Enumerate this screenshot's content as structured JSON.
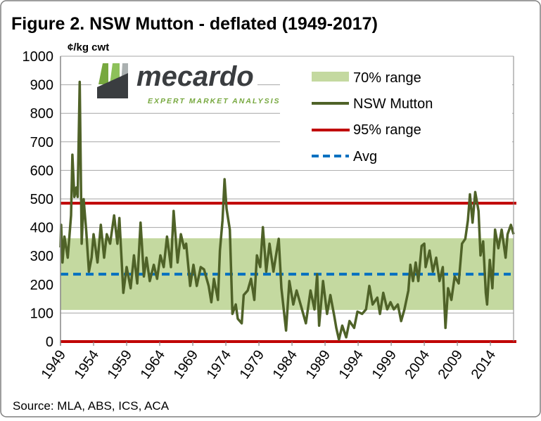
{
  "chart_data": {
    "type": "line",
    "title": "Figure 2. NSW Mutton - deflated (1949-2017)",
    "ylabel": "¢/kg cwt",
    "xlabel": "",
    "source": "Source:  MLA, ABS, ICS, ACA",
    "ylim": [
      0,
      1000
    ],
    "xlim": [
      1949,
      2017.5
    ],
    "yticks": [
      0,
      100,
      200,
      300,
      400,
      500,
      600,
      700,
      800,
      900,
      1000
    ],
    "xticks": [
      1949,
      1954,
      1959,
      1964,
      1969,
      1974,
      1979,
      1984,
      1989,
      1994,
      1999,
      2004,
      2009,
      2014
    ],
    "grid": true,
    "legend_position": "top-right",
    "legend": [
      "70% range",
      "NSW Mutton",
      "95% range",
      "Avg"
    ],
    "colors": {
      "band": "#c4d9a0",
      "series": "#4f6228",
      "range95": "#c00000",
      "avg": "#0070c0",
      "grid": "#a6a6a6"
    },
    "range70": [
      111,
      362
    ],
    "range95": [
      0,
      485
    ],
    "avg": 236,
    "series": [
      {
        "name": "NSW Mutton",
        "x": [
          1949.0,
          1949.1,
          1949.3,
          1949.6,
          1950.1,
          1950.6,
          1950.8,
          1951.1,
          1951.4,
          1951.6,
          1951.9,
          1952.2,
          1952.5,
          1952.9,
          1953.3,
          1953.7,
          1954.0,
          1954.6,
          1955.1,
          1955.6,
          1956.0,
          1956.5,
          1957.1,
          1957.6,
          1957.9,
          1958.5,
          1959.0,
          1959.6,
          1960.1,
          1960.6,
          1961.1,
          1961.6,
          1962.0,
          1962.5,
          1963.1,
          1963.6,
          1964.1,
          1964.6,
          1965.1,
          1965.7,
          1966.1,
          1966.7,
          1967.2,
          1967.7,
          1968.0,
          1968.6,
          1969.1,
          1969.6,
          1970.2,
          1970.7,
          1971.4,
          1971.8,
          1972.2,
          1972.8,
          1973.1,
          1973.5,
          1973.8,
          1974.1,
          1974.6,
          1975.0,
          1975.5,
          1975.8,
          1976.4,
          1976.7,
          1977.3,
          1977.8,
          1978.3,
          1978.7,
          1979.2,
          1979.6,
          1980.1,
          1980.6,
          1981.2,
          1981.7,
          1982.0,
          1982.4,
          1983.1,
          1983.6,
          1984.2,
          1984.7,
          1985.4,
          1986.1,
          1986.8,
          1987.4,
          1987.8,
          1988.1,
          1988.7,
          1989.3,
          1989.8,
          1990.4,
          1990.7,
          1991.1,
          1991.6,
          1992.2,
          1992.7,
          1993.4,
          1993.9,
          1994.6,
          1995.2,
          1995.7,
          1996.2,
          1996.9,
          1997.3,
          1997.8,
          1998.4,
          1998.9,
          1999.4,
          2000.0,
          2000.5,
          2001.0,
          2001.6,
          2001.9,
          2002.3,
          2002.7,
          2003.1,
          2003.6,
          2004.0,
          2004.2,
          2004.8,
          2005.3,
          2005.8,
          2006.3,
          2006.8,
          2007.2,
          2007.6,
          2008.1,
          2008.6,
          2009.2,
          2009.7,
          2010.2,
          2010.6,
          2010.9,
          2011.3,
          2011.7,
          2012.2,
          2012.5,
          2012.9,
          2013.3,
          2013.5,
          2013.9,
          2014.3,
          2014.7,
          2015.2,
          2015.7,
          2016.3,
          2016.6,
          2017.1,
          2017.5
        ],
        "y": [
          330,
          409,
          277,
          368,
          294,
          442,
          655,
          507,
          540,
          507,
          910,
          343,
          499,
          384,
          245,
          294,
          376,
          277,
          409,
          294,
          376,
          343,
          442,
          343,
          433,
          171,
          261,
          187,
          302,
          204,
          417,
          228,
          294,
          212,
          269,
          220,
          302,
          261,
          368,
          261,
          458,
          277,
          376,
          327,
          343,
          195,
          269,
          195,
          261,
          253,
          195,
          138,
          220,
          146,
          319,
          425,
          569,
          466,
          392,
          97,
          130,
          80,
          64,
          163,
          179,
          220,
          146,
          302,
          261,
          401,
          245,
          343,
          245,
          319,
          360,
          187,
          39,
          212,
          130,
          179,
          122,
          64,
          179,
          113,
          236,
          56,
          212,
          97,
          163,
          89,
          48,
          7,
          56,
          15,
          72,
          48,
          105,
          97,
          113,
          195,
          130,
          154,
          97,
          171,
          113,
          138,
          113,
          130,
          72,
          113,
          179,
          269,
          212,
          277,
          212,
          335,
          343,
          261,
          319,
          245,
          294,
          212,
          261,
          48,
          187,
          146,
          228,
          204,
          343,
          360,
          425,
          516,
          417,
          524,
          458,
          302,
          351,
          171,
          130,
          286,
          187,
          392,
          327,
          392,
          294,
          376,
          409,
          376
        ]
      }
    ]
  },
  "logo": {
    "name": "mecardo",
    "tagline": "EXPERT MARKET ANALYSIS"
  }
}
